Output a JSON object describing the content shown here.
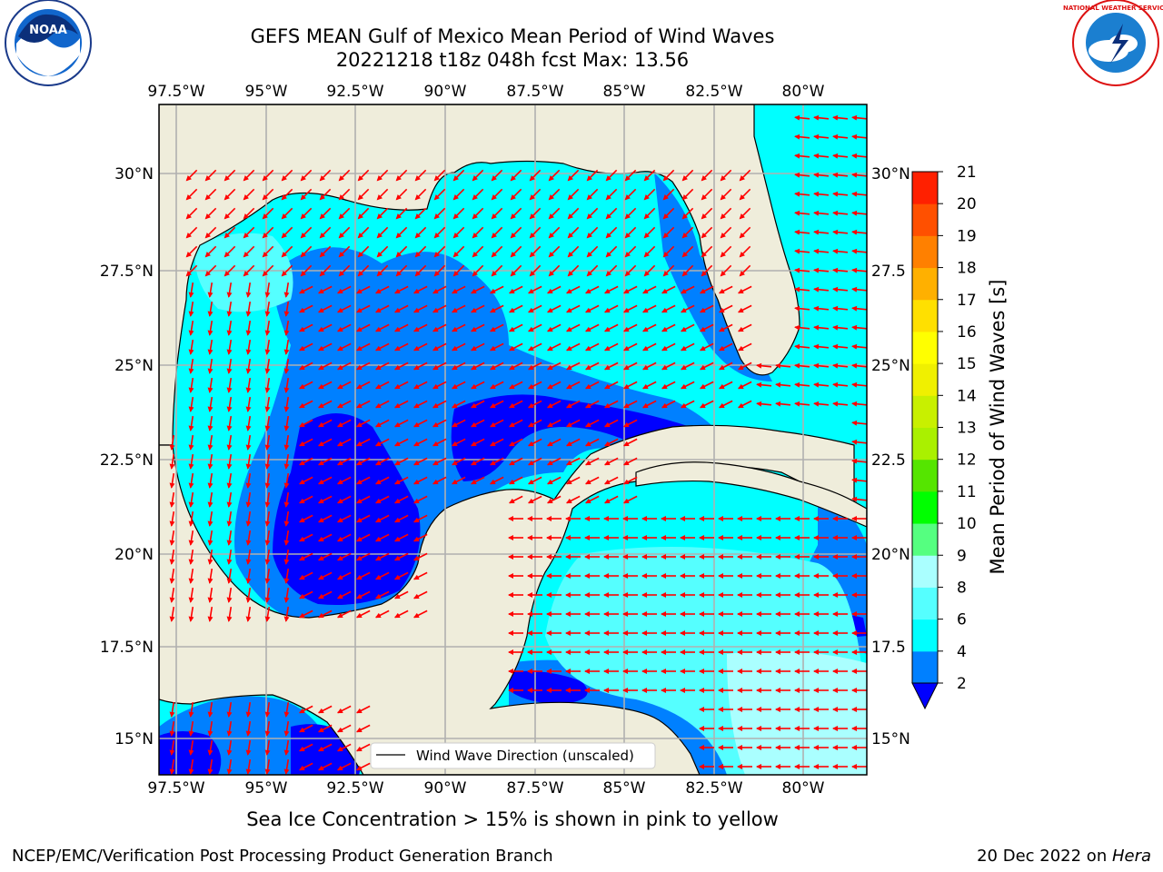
{
  "header": {
    "title_line1": "GEFS MEAN Gulf of Mexico Mean Period of Wind Waves",
    "title_line2": "20221218 t18z 048h fcst   Max: 13.56",
    "left_logo_text": "NOAA",
    "right_logo_text": "NATIONAL WEATHER SERVICE"
  },
  "map": {
    "lon_labels": [
      "97.5°W",
      "95°W",
      "92.5°W",
      "90°W",
      "87.5°W",
      "85°W",
      "82.5°W",
      "80°W"
    ],
    "lon_values": [
      -97.5,
      -95,
      -92.5,
      -90,
      -87.5,
      -85,
      -82.5,
      -80
    ],
    "lat_labels_left": [
      "30°N",
      "27.5°N",
      "25°N",
      "22.5°N",
      "20°N",
      "17.5°N",
      "15°N"
    ],
    "lat_labels_right": [
      "30°N",
      "27.5",
      "25°N",
      "22.5",
      "20°N",
      "17.5",
      "15°N"
    ],
    "lat_values": [
      30,
      27.5,
      25,
      22.5,
      20,
      17.5,
      15
    ],
    "extent": {
      "lon": [
        -98,
        -78.3
      ],
      "lat": [
        14,
        31.6
      ]
    },
    "legend_label": "Wind Wave Direction (unscaled)",
    "land_color": "#efeddb",
    "vector_color": "#ff0000"
  },
  "colorbar": {
    "label": "Mean Period of Wind Waves [s]",
    "ticks": [
      "2",
      "4",
      "6",
      "8",
      "9",
      "10",
      "11",
      "12",
      "13",
      "14",
      "15",
      "16",
      "17",
      "18",
      "19",
      "20",
      "21"
    ],
    "colors": [
      "#0000ff",
      "#0080ff",
      "#00ffff",
      "#55ffff",
      "#aaffff",
      "#55ff80",
      "#00ff00",
      "#55e500",
      "#aaf000",
      "#c8f000",
      "#f0f000",
      "#ffff00",
      "#ffe000",
      "#ffb000",
      "#ff8000",
      "#ff5000",
      "#ff2000",
      "#ff0000"
    ]
  },
  "footer": {
    "sea_ice_note": "Sea Ice Concentration > 15% is shown in pink to yellow",
    "credit": "NCEP/EMC/Verification Post Processing Product Generation Branch",
    "date_prefix": "20 Dec 2022 on ",
    "date_host": "Hera"
  }
}
